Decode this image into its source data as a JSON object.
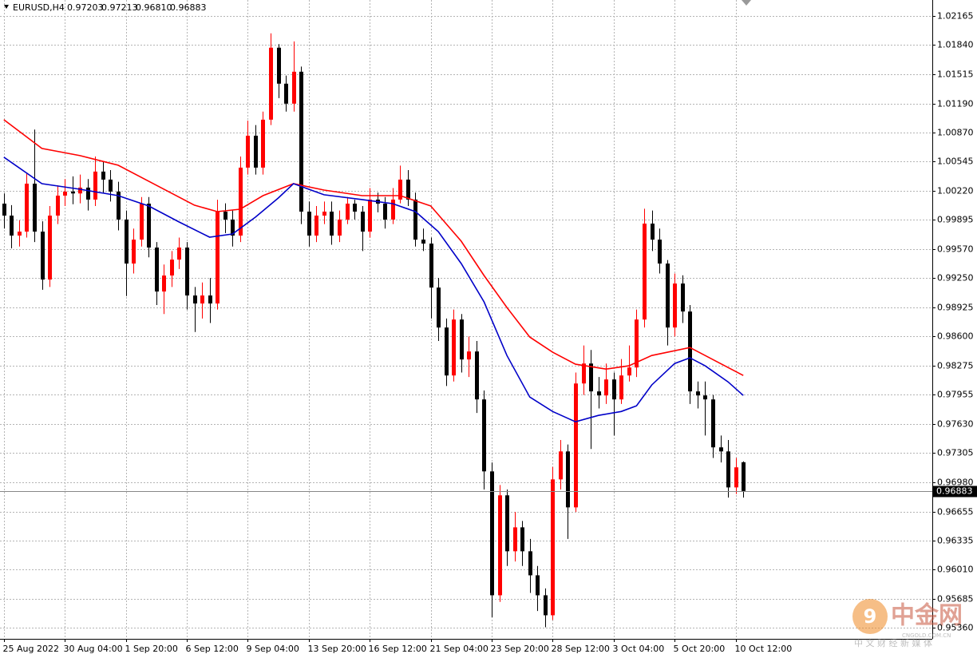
{
  "chart_data": {
    "type": "candlestick",
    "title": "EURUSD,H4",
    "title_values": [
      "0.97203",
      "0.97213",
      "0.96810",
      "0.96883"
    ],
    "up_color": "#ff0000",
    "down_color": "#000000",
    "grid": true,
    "xlim": [
      -0.5,
      121.8
    ],
    "ylim": [
      0.9524,
      1.0234
    ],
    "xticks": [
      {
        "value": 0,
        "label": "25 Aug 2022"
      },
      {
        "value": 8,
        "label": "30 Aug 04:00"
      },
      {
        "value": 16,
        "label": "1 Sep 20:00"
      },
      {
        "value": 24,
        "label": "6 Sep 12:00"
      },
      {
        "value": 32,
        "label": "9 Sep 04:00"
      },
      {
        "value": 40,
        "label": "13 Sep 20:00"
      },
      {
        "value": 48,
        "label": "16 Sep 12:00"
      },
      {
        "value": 56,
        "label": "21 Sep 04:00"
      },
      {
        "value": 64,
        "label": "23 Sep 20:00"
      },
      {
        "value": 72,
        "label": "28 Sep 12:00"
      },
      {
        "value": 80,
        "label": "3 Oct 04:00"
      },
      {
        "value": 88,
        "label": "5 Oct 20:00"
      },
      {
        "value": 96,
        "label": "10 Oct 12:00"
      }
    ],
    "yticks": [
      {
        "value": 1.02165,
        "label": "1.02165"
      },
      {
        "value": 1.0184,
        "label": "1.01840"
      },
      {
        "value": 1.01515,
        "label": "1.01515"
      },
      {
        "value": 1.0119,
        "label": "1.01190"
      },
      {
        "value": 1.0087,
        "label": "1.00870"
      },
      {
        "value": 1.00545,
        "label": "1.00545"
      },
      {
        "value": 1.0022,
        "label": "1.00220"
      },
      {
        "value": 0.99895,
        "label": "0.99895"
      },
      {
        "value": 0.9957,
        "label": "0.99570"
      },
      {
        "value": 0.9925,
        "label": "0.99250"
      },
      {
        "value": 0.98925,
        "label": "0.98925"
      },
      {
        "value": 0.986,
        "label": "0.98600"
      },
      {
        "value": 0.98275,
        "label": "0.98275"
      },
      {
        "value": 0.97955,
        "label": "0.97955"
      },
      {
        "value": 0.9763,
        "label": "0.97630"
      },
      {
        "value": 0.97305,
        "label": "0.97305"
      },
      {
        "value": 0.9698,
        "label": "0.96980"
      },
      {
        "value": 0.96655,
        "label": "0.96655"
      },
      {
        "value": 0.96335,
        "label": "0.96335"
      },
      {
        "value": 0.9601,
        "label": "0.96010"
      },
      {
        "value": 0.95685,
        "label": "0.95685"
      },
      {
        "value": 0.9536,
        "label": "0.95360"
      }
    ],
    "last_price": {
      "value": 0.96883,
      "label": "0.96883"
    },
    "open": [
      1.00077,
      0.99944,
      0.99722,
      0.99766,
      1.00299,
      0.99766,
      0.99233,
      0.99944,
      1.00166,
      1.00211,
      1.0019,
      1.00255,
      1.00122,
      1.00433,
      1.00344,
      1.00211,
      0.999,
      0.99411,
      0.99677,
      1.00077,
      0.99589,
      0.991,
      0.99278,
      0.99455,
      0.99589,
      0.99056,
      0.98967,
      0.99056,
      0.98967,
      0.99988,
      0.999,
      0.99722,
      1.00477,
      1.00832,
      1.00477,
      1.0101,
      1.0181,
      1.0141,
      1.01188,
      1.01543,
      0.99988,
      0.99722,
      0.99944,
      0.99988,
      0.99722,
      0.999,
      1.00077,
      0.99988,
      0.99766,
      1.00122,
      1.00077,
      0.999,
      1.00122,
      1.00344,
      1.00122,
      0.99677,
      0.99633,
      0.99144,
      0.987,
      0.98167,
      0.98789,
      0.98345,
      0.98434,
      0.97901,
      0.97101,
      0.95724,
      0.96835,
      0.96213,
      0.96479,
      0.96213,
      0.95946,
      0.95724,
      0.95502,
      0.97012,
      0.97323,
      0.96701,
      0.98078,
      0.983,
      0.9799,
      0.97945,
      0.98123,
      0.97901,
      0.98167,
      0.98256,
      0.98789,
      0.99855,
      0.99677,
      0.99411,
      0.987,
      0.99189,
      0.98878,
      0.9799,
      0.97945,
      0.97901,
      0.97368,
      0.97323,
      0.96923,
      0.97203
    ],
    "high": [
      1.0019,
      1.0006,
      0.9989,
      1.0042,
      1.009,
      0.9988,
      1.0005,
      1.0028,
      1.0035,
      1.0038,
      1.004,
      1.0035,
      1.006,
      1.0055,
      1.0045,
      1.0032,
      1.0,
      0.998,
      1.0015,
      1.0015,
      0.9965,
      0.994,
      0.9955,
      0.997,
      0.9965,
      0.9915,
      0.992,
      0.9925,
      1.0012,
      1.0008,
      1.0,
      1.006,
      1.01,
      1.0095,
      1.011,
      1.0197,
      1.0185,
      1.015,
      1.0188,
      1.016,
      1.001,
      1.0005,
      1.001,
      1.001,
      1.0,
      1.0015,
      1.0012,
      1.0005,
      1.0025,
      1.002,
      1.0015,
      1.0025,
      1.005,
      1.0045,
      1.002,
      0.998,
      0.997,
      0.9925,
      0.988,
      0.989,
      0.9885,
      0.986,
      0.9855,
      0.98,
      0.972,
      0.9695,
      0.969,
      0.9665,
      0.9655,
      0.9635,
      0.9605,
      0.958,
      0.9715,
      0.9745,
      0.974,
      0.982,
      0.985,
      0.9845,
      0.9815,
      0.983,
      0.982,
      0.9835,
      0.985,
      0.989,
      1.0002,
      1.0,
      0.998,
      0.9945,
      0.993,
      0.9928,
      0.9895,
      0.981,
      0.981,
      0.9795,
      0.975,
      0.9745,
      0.9725,
      0.97213
    ],
    "low": [
      0.998,
      0.9958,
      0.996,
      0.997,
      0.9965,
      0.9912,
      0.9915,
      0.9985,
      1.0005,
      1.0007,
      1.0008,
      1.0,
      1.0005,
      1.002,
      1.001,
      0.9978,
      0.9905,
      0.993,
      0.996,
      0.9948,
      0.9895,
      0.9885,
      0.9915,
      0.9935,
      0.989,
      0.9865,
      0.988,
      0.9875,
      0.989,
      0.9975,
      0.996,
      0.9965,
      1.004,
      1.004,
      1.004,
      1.0095,
      1.0125,
      1.011,
      1.011,
      0.9985,
      0.996,
      0.9965,
      0.9985,
      0.9962,
      0.9965,
      0.9985,
      0.999,
      0.9955,
      0.997,
      0.9998,
      0.998,
      0.9985,
      1.0008,
      1.0005,
      0.996,
      0.9955,
      0.988,
      0.9855,
      0.9805,
      0.981,
      0.982,
      0.9815,
      0.9775,
      0.969,
      0.9548,
      0.9565,
      0.9605,
      0.961,
      0.9605,
      0.9575,
      0.9555,
      0.95369,
      0.9545,
      0.969,
      0.9635,
      0.9665,
      0.9795,
      0.9735,
      0.978,
      0.9785,
      0.975,
      0.9785,
      0.981,
      0.9815,
      0.987,
      0.9955,
      0.993,
      0.985,
      0.986,
      0.9875,
      0.9785,
      0.978,
      0.975,
      0.9725,
      0.972,
      0.9681,
      0.9685,
      0.9681
    ],
    "close": [
      0.99944,
      0.99722,
      0.99766,
      1.00299,
      0.99766,
      0.99233,
      0.99944,
      1.00166,
      1.00211,
      1.0019,
      1.00255,
      1.00122,
      1.00433,
      1.00344,
      1.00211,
      0.999,
      0.99411,
      0.99677,
      1.00077,
      0.99589,
      0.991,
      0.99278,
      0.99455,
      0.99589,
      0.99056,
      0.98967,
      0.99056,
      0.98967,
      0.99988,
      0.999,
      0.99722,
      1.00477,
      1.00832,
      1.00477,
      1.0101,
      1.0181,
      1.0141,
      1.01188,
      1.01543,
      0.99988,
      0.99722,
      0.99944,
      0.99988,
      0.99722,
      0.999,
      1.00077,
      0.99988,
      0.99766,
      1.00122,
      1.00077,
      0.999,
      1.00122,
      1.00344,
      1.00122,
      0.99677,
      0.99633,
      0.99144,
      0.987,
      0.98167,
      0.98789,
      0.98345,
      0.98434,
      0.97901,
      0.97101,
      0.95724,
      0.96835,
      0.96213,
      0.96479,
      0.96213,
      0.95946,
      0.95724,
      0.95502,
      0.97012,
      0.97323,
      0.96701,
      0.98078,
      0.983,
      0.9799,
      0.97945,
      0.98123,
      0.97901,
      0.98167,
      0.98256,
      0.98789,
      0.99855,
      0.99677,
      0.99411,
      0.987,
      0.99189,
      0.98878,
      0.9799,
      0.97945,
      0.97901,
      0.97368,
      0.97323,
      0.96923,
      0.97146,
      0.96883
    ],
    "moving_averages": [
      {
        "color": "#ff0000",
        "x": [
          0,
          5,
          10,
          15,
          20,
          25,
          28,
          31,
          34,
          38,
          42,
          47,
          52,
          56,
          60,
          63,
          66,
          69,
          72,
          75,
          79,
          82,
          85,
          90,
          94,
          97
        ],
        "values": [
          1.0101,
          1.0069,
          1.0061,
          1.00504,
          1.00282,
          1.0006,
          0.99988,
          1.00015,
          1.00166,
          1.00299,
          1.00228,
          1.00166,
          1.00166,
          1.00051,
          0.9966,
          0.99278,
          0.98922,
          0.98594,
          0.98425,
          0.98292,
          0.98238,
          0.98274,
          0.98389,
          0.98478,
          0.983,
          0.98167
        ]
      },
      {
        "color": "#0000c8",
        "x": [
          0,
          5,
          10,
          15,
          19,
          23,
          27,
          30,
          33,
          36,
          38,
          42,
          47,
          51,
          54,
          57,
          60,
          63,
          66,
          69,
          72,
          75,
          78,
          81,
          83,
          85,
          88,
          90,
          92,
          95,
          97
        ],
        "values": [
          1.00593,
          1.00299,
          1.00237,
          1.00166,
          1.00051,
          0.99873,
          0.99704,
          0.9974,
          0.99926,
          1.00139,
          1.00299,
          1.00175,
          1.00122,
          1.00077,
          0.99988,
          0.99766,
          0.99411,
          0.98985,
          0.98389,
          0.97927,
          0.97767,
          0.97652,
          0.97723,
          0.97767,
          0.9783,
          0.98061,
          0.983,
          0.98363,
          0.98274,
          0.98096,
          0.97945
        ]
      }
    ]
  },
  "watermark": {
    "brand": "中金网",
    "domain": "CNGOLD.COM.CN",
    "slogan": "中 文 财 经 新 媒 体"
  }
}
